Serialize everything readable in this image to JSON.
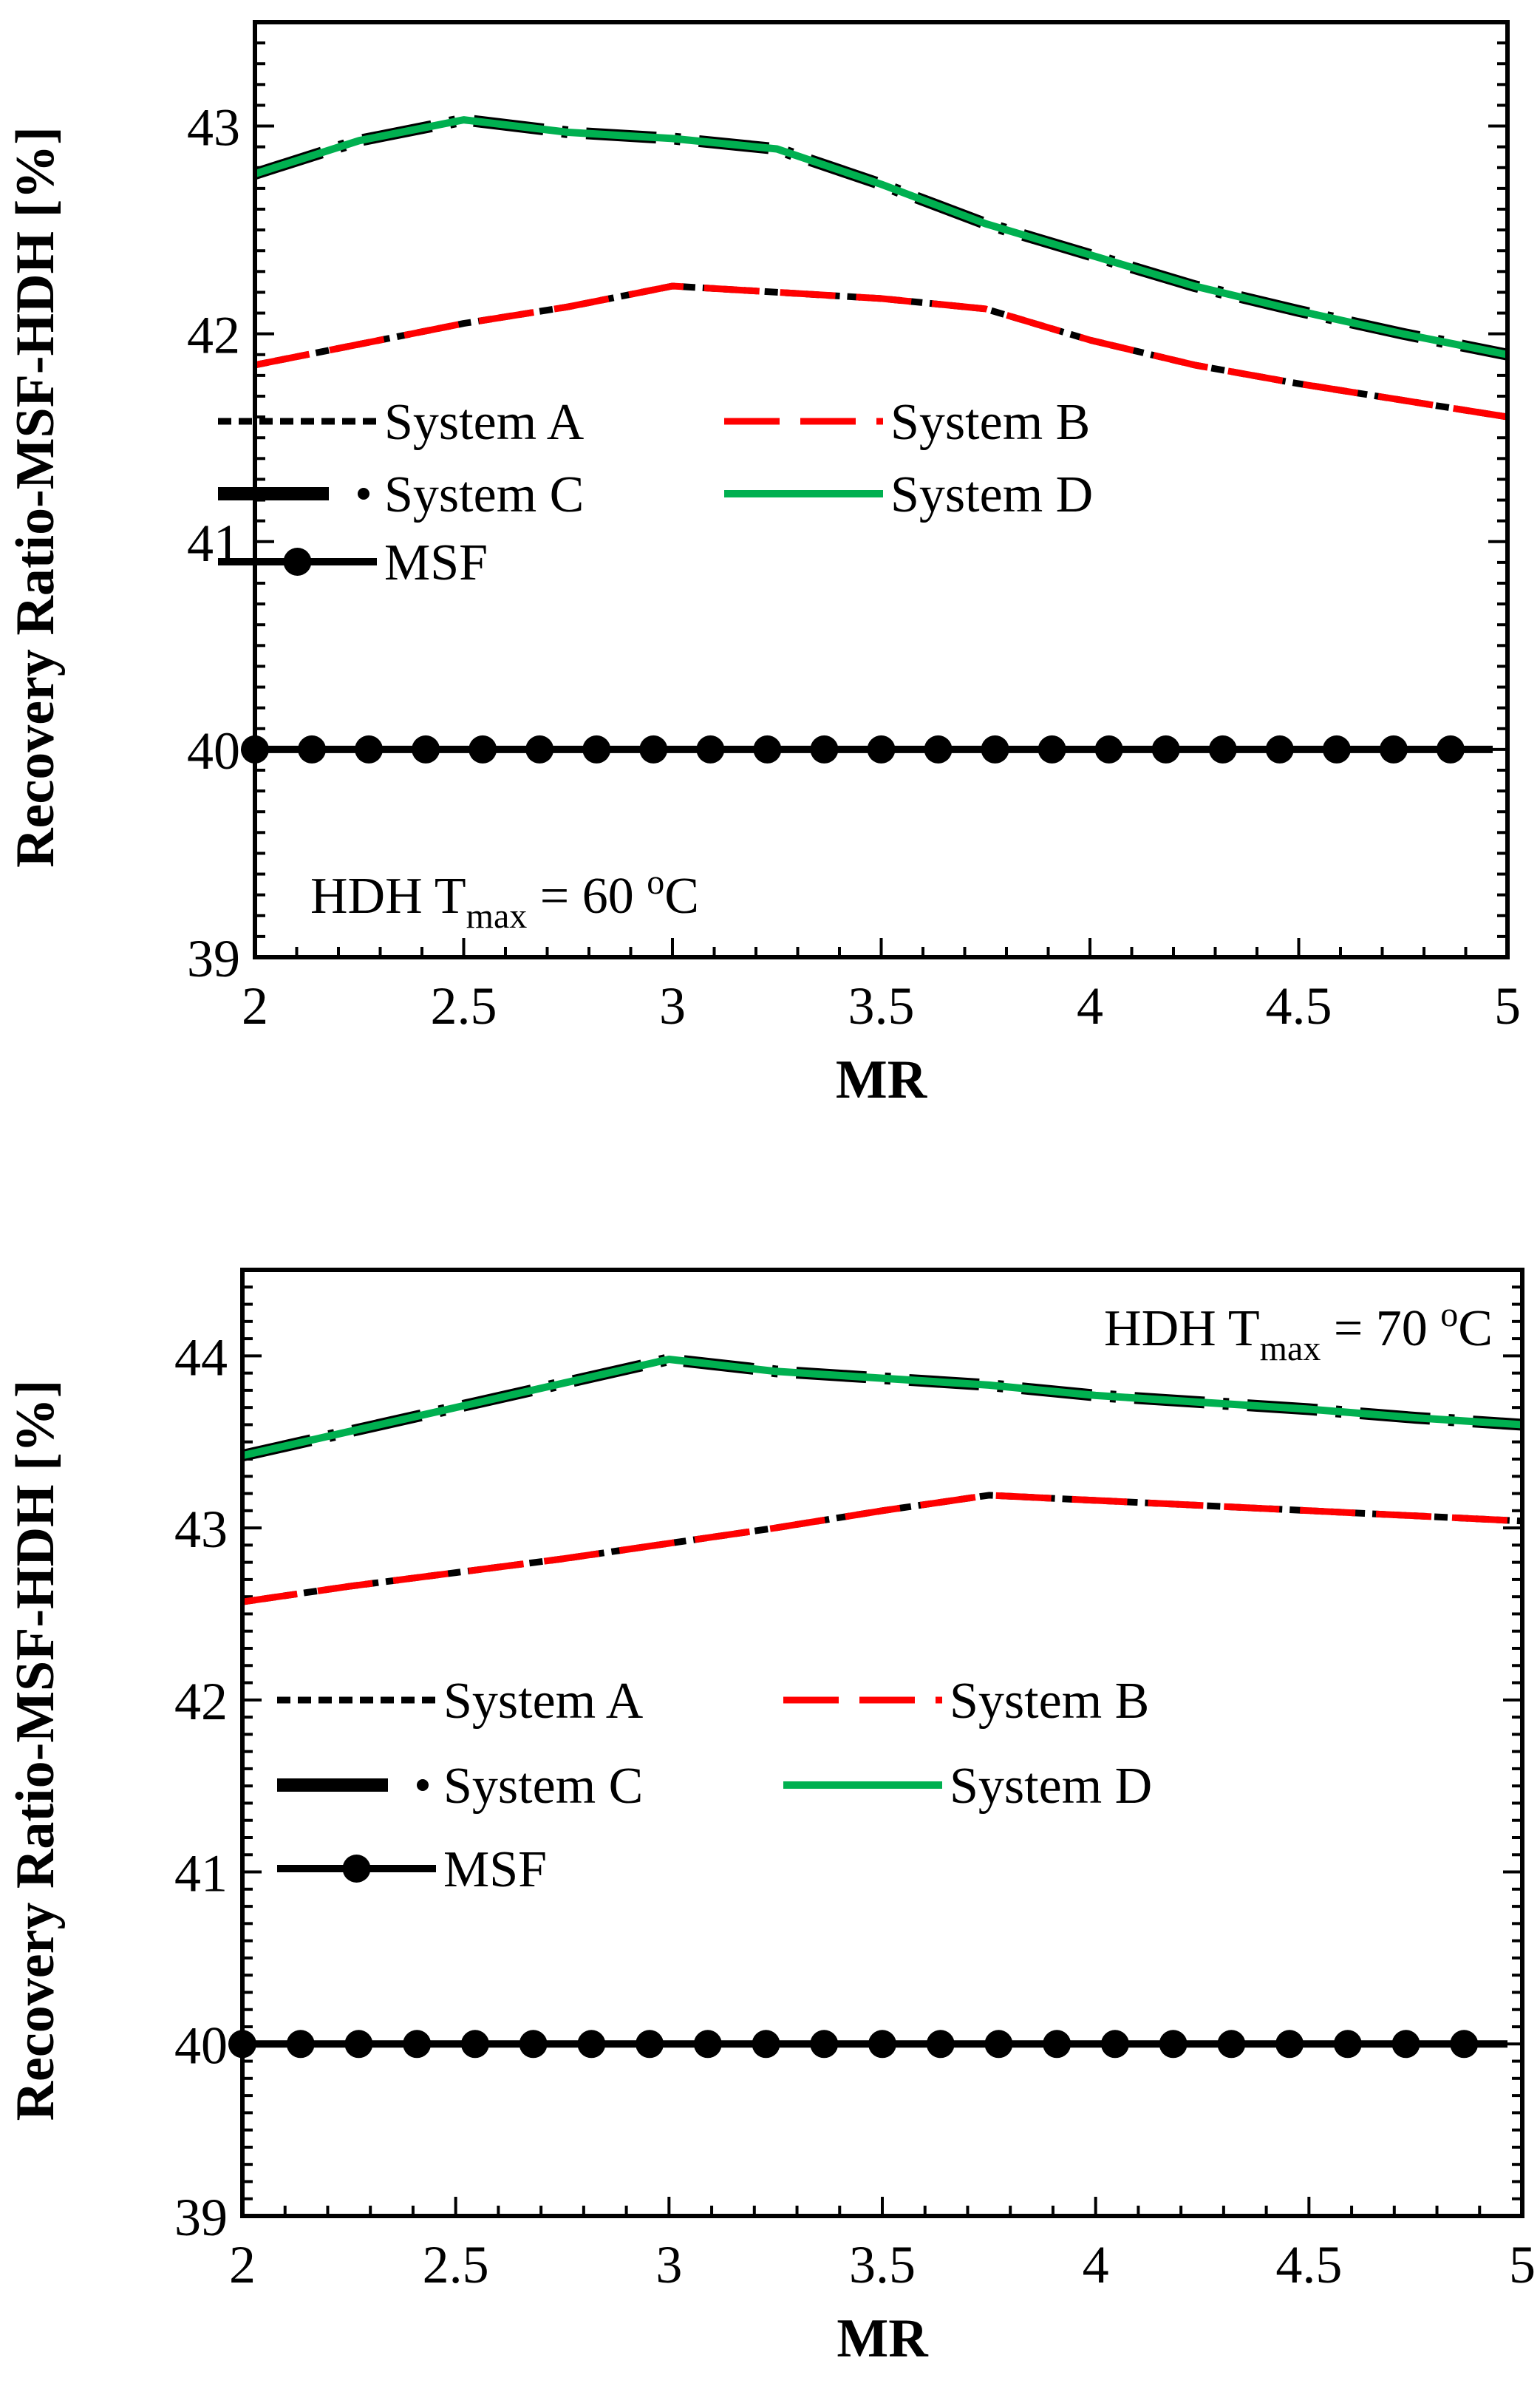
{
  "chart_data": [
    {
      "type": "line",
      "xlabel": "MR",
      "ylabel": "Recovery Ratio-MSF-HDH [%]",
      "xlim": [
        2,
        5
      ],
      "ylim": [
        39,
        43.5
      ],
      "xticks": [
        "2",
        "2.5",
        "3",
        "3.5",
        "4",
        "4.5",
        "5"
      ],
      "yticks": [
        "39",
        "40",
        "41",
        "42",
        "43"
      ],
      "annotation": {
        "prefix": "HDH T",
        "subscript": "max",
        "middle": " = 60 ",
        "superscript": "o",
        "suffix": "C"
      },
      "legend": {
        "position": "center",
        "entries": [
          "System A",
          "System B",
          "System C",
          "System D",
          "MSF"
        ]
      },
      "series": [
        {
          "name": "System A",
          "x": [
            2,
            2.25,
            2.5,
            2.75,
            3,
            3.25,
            3.5,
            3.75,
            4,
            4.25,
            4.5,
            4.75,
            5
          ],
          "values": [
            41.85,
            41.95,
            42.05,
            42.13,
            42.23,
            42.2,
            42.17,
            42.12,
            41.97,
            41.85,
            41.76,
            41.68,
            41.6
          ]
        },
        {
          "name": "System B",
          "x": [
            2,
            2.25,
            2.5,
            2.75,
            3,
            3.25,
            3.5,
            3.75,
            4,
            4.25,
            4.5,
            4.75,
            5
          ],
          "values": [
            41.85,
            41.95,
            42.05,
            42.13,
            42.23,
            42.2,
            42.17,
            42.12,
            41.97,
            41.85,
            41.76,
            41.68,
            41.6
          ]
        },
        {
          "name": "System C",
          "x": [
            2,
            2.25,
            2.5,
            2.75,
            3,
            3.25,
            3.5,
            3.75,
            4,
            4.25,
            4.5,
            4.75,
            5
          ],
          "values": [
            42.77,
            42.93,
            43.03,
            42.97,
            42.94,
            42.89,
            42.72,
            42.53,
            42.38,
            42.23,
            42.11,
            42.0,
            41.9
          ]
        },
        {
          "name": "System D",
          "x": [
            2,
            2.25,
            2.5,
            2.75,
            3,
            3.25,
            3.5,
            3.75,
            4,
            4.25,
            4.5,
            4.75,
            5
          ],
          "values": [
            42.77,
            42.93,
            43.03,
            42.97,
            42.94,
            42.89,
            42.72,
            42.53,
            42.38,
            42.23,
            42.11,
            42.0,
            41.9
          ]
        },
        {
          "name": "MSF",
          "x": [
            2,
            2.1364,
            2.2727,
            2.4091,
            2.5455,
            2.6818,
            2.8182,
            2.9545,
            3.0909,
            3.2273,
            3.3636,
            3.5,
            3.6364,
            3.7727,
            3.9091,
            4.0455,
            4.1818,
            4.3182,
            4.4545,
            4.5909,
            4.7273,
            4.8636
          ],
          "values": [
            40,
            40,
            40,
            40,
            40,
            40,
            40,
            40,
            40,
            40,
            40,
            40,
            40,
            40,
            40,
            40,
            40,
            40,
            40,
            40,
            40,
            40
          ]
        }
      ]
    },
    {
      "type": "line",
      "xlabel": "MR",
      "ylabel": "Recovery Ratio-MSF-HDH [%]",
      "xlim": [
        2,
        5
      ],
      "ylim": [
        39,
        44.5
      ],
      "xticks": [
        "2",
        "2.5",
        "3",
        "3.5",
        "4",
        "4.5",
        "5"
      ],
      "yticks": [
        "39",
        "40",
        "41",
        "42",
        "43",
        "44"
      ],
      "annotation": {
        "prefix": "HDH T",
        "subscript": "max",
        "middle": " = 70 ",
        "superscript": "o",
        "suffix": "C"
      },
      "legend": {
        "position": "center",
        "entries": [
          "System A",
          "System B",
          "System C",
          "System D",
          "MSF"
        ]
      },
      "series": [
        {
          "name": "System A",
          "x": [
            2,
            2.25,
            2.5,
            2.75,
            3,
            3.25,
            3.5,
            3.75,
            4,
            4.25,
            4.5,
            4.75,
            5
          ],
          "values": [
            42.57,
            42.66,
            42.74,
            42.82,
            42.91,
            43.0,
            43.1,
            43.19,
            43.16,
            43.13,
            43.1,
            43.07,
            43.04
          ]
        },
        {
          "name": "System B",
          "x": [
            2,
            2.25,
            2.5,
            2.75,
            3,
            3.25,
            3.5,
            3.75,
            4,
            4.25,
            4.5,
            4.75,
            5
          ],
          "values": [
            42.57,
            42.66,
            42.74,
            42.82,
            42.91,
            43.0,
            43.1,
            43.19,
            43.16,
            43.13,
            43.1,
            43.07,
            43.04
          ]
        },
        {
          "name": "System C",
          "x": [
            2,
            2.25,
            2.5,
            2.75,
            3,
            3.25,
            3.5,
            3.75,
            4,
            4.25,
            4.5,
            4.75,
            5
          ],
          "values": [
            43.42,
            43.56,
            43.7,
            43.84,
            43.98,
            43.91,
            43.87,
            43.83,
            43.77,
            43.73,
            43.69,
            43.64,
            43.6
          ]
        },
        {
          "name": "System D",
          "x": [
            2,
            2.25,
            2.5,
            2.75,
            3,
            3.25,
            3.5,
            3.75,
            4,
            4.25,
            4.5,
            4.75,
            5
          ],
          "values": [
            43.42,
            43.56,
            43.7,
            43.84,
            43.98,
            43.91,
            43.87,
            43.83,
            43.77,
            43.73,
            43.69,
            43.64,
            43.6
          ]
        },
        {
          "name": "MSF",
          "x": [
            2,
            2.1364,
            2.2727,
            2.4091,
            2.5455,
            2.6818,
            2.8182,
            2.9545,
            3.0909,
            3.2273,
            3.3636,
            3.5,
            3.6364,
            3.7727,
            3.9091,
            4.0455,
            4.1818,
            4.3182,
            4.4545,
            4.5909,
            4.7273,
            4.8636
          ],
          "values": [
            40,
            40,
            40,
            40,
            40,
            40,
            40,
            40,
            40,
            40,
            40,
            40,
            40,
            40,
            40,
            40,
            40,
            40,
            40,
            40,
            40,
            40
          ]
        }
      ]
    }
  ],
  "colors": {
    "System A": "#000000",
    "System B": "#ff0000",
    "System C": "#000000",
    "System D": "#00b050",
    "MSF": "#000000",
    "axis": "#000000"
  }
}
